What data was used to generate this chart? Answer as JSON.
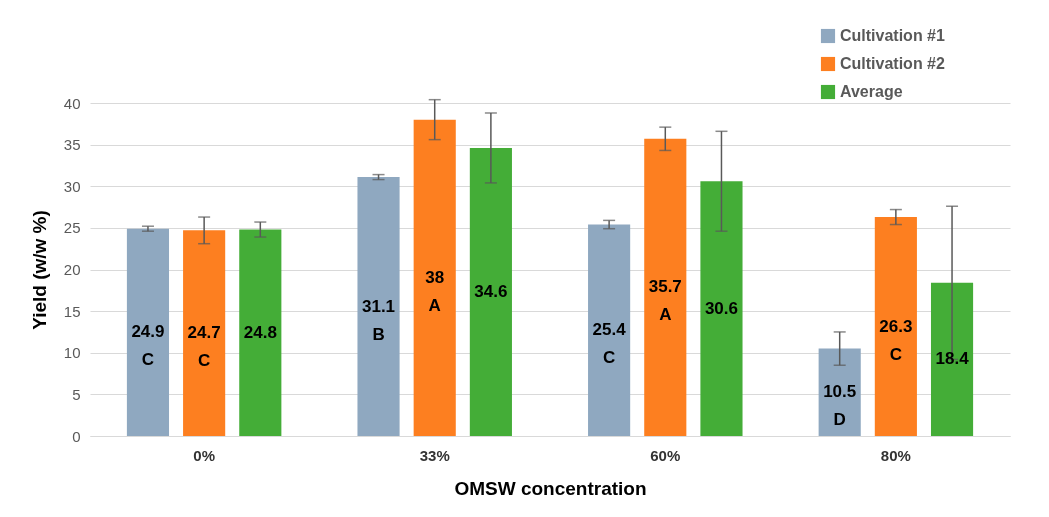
{
  "chart_data": {
    "type": "bar",
    "xlabel": "OMSW concentration",
    "ylabel": "Yield (w/w %)",
    "categories": [
      "0%",
      "33%",
      "60%",
      "80%"
    ],
    "series": [
      {
        "name": "Cultivation #1",
        "color": "#8fa8c0",
        "values": [
          24.9,
          31.1,
          25.4,
          10.5
        ],
        "errors": [
          0.3,
          0.3,
          0.5,
          2.0
        ],
        "value_labels": [
          "24.9\nC",
          "31.1\nB",
          "25.4\nC",
          "10.5\nD"
        ]
      },
      {
        "name": "Cultivation #2",
        "color": "#fd7f20",
        "values": [
          24.7,
          38,
          35.7,
          26.3
        ],
        "errors": [
          1.6,
          2.4,
          1.4,
          0.9
        ],
        "value_labels": [
          "24.7\nC",
          "38\nA",
          "35.7\nA",
          "26.3\nC"
        ]
      },
      {
        "name": "Average",
        "color": "#44ad37",
        "values": [
          24.8,
          34.6,
          30.6,
          18.4
        ],
        "errors": [
          0.9,
          4.2,
          6.0,
          9.2
        ],
        "value_labels": [
          "24.8",
          "34.6",
          "30.6",
          "18.4"
        ]
      }
    ],
    "ylim": [
      0,
      40
    ],
    "yticks": [
      0,
      5,
      10,
      15,
      20,
      25,
      30,
      35,
      40
    ],
    "grid": "y",
    "legend": "top right"
  }
}
